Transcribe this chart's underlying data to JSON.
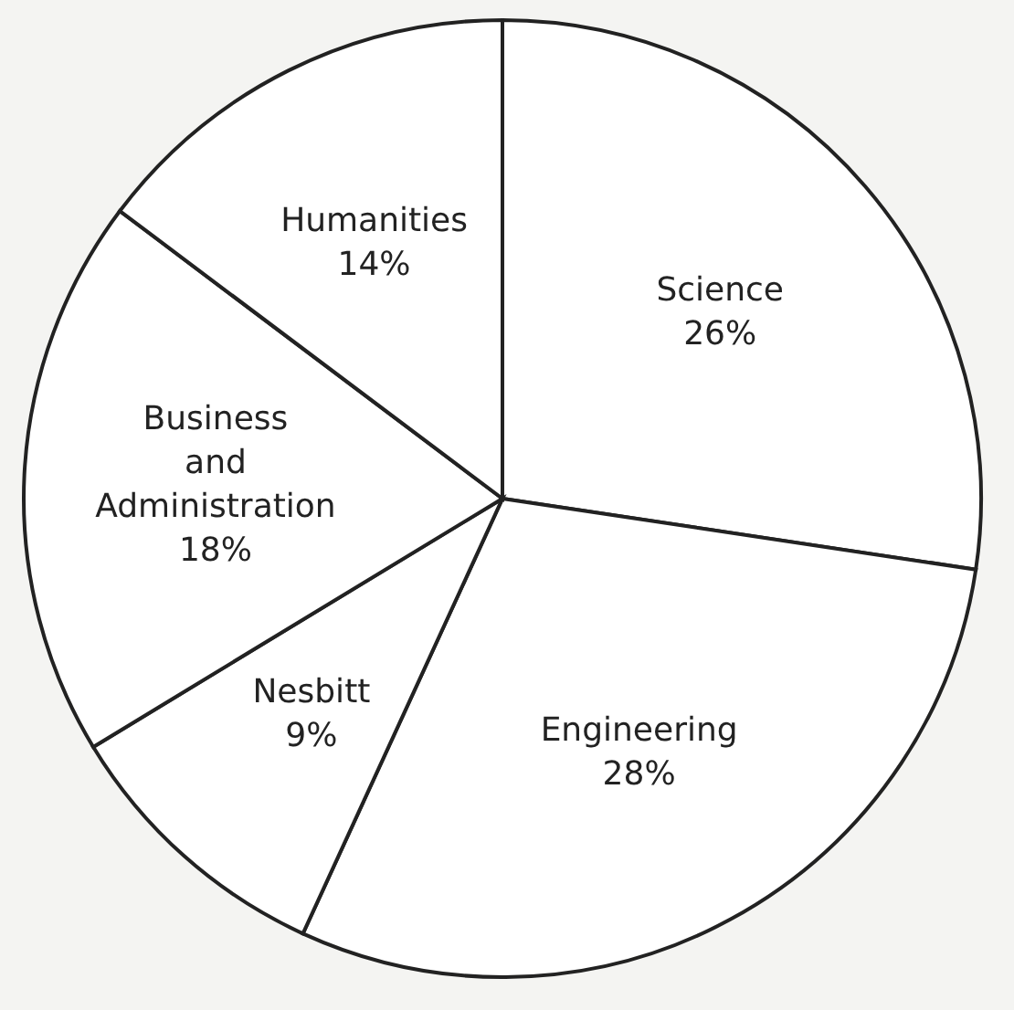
{
  "chart_data": {
    "type": "pie",
    "categories": [
      "Science",
      "Engineering",
      "Nesbitt",
      "Business and Administration",
      "Humanities"
    ],
    "values": [
      26,
      28,
      9,
      18,
      14
    ],
    "value_labels": [
      "26%",
      "28%",
      "9%",
      "18%",
      "14%"
    ],
    "colors": [
      "#ffffff",
      "#ffffff",
      "#ffffff",
      "#ffffff",
      "#ffffff"
    ],
    "legend": false
  }
}
